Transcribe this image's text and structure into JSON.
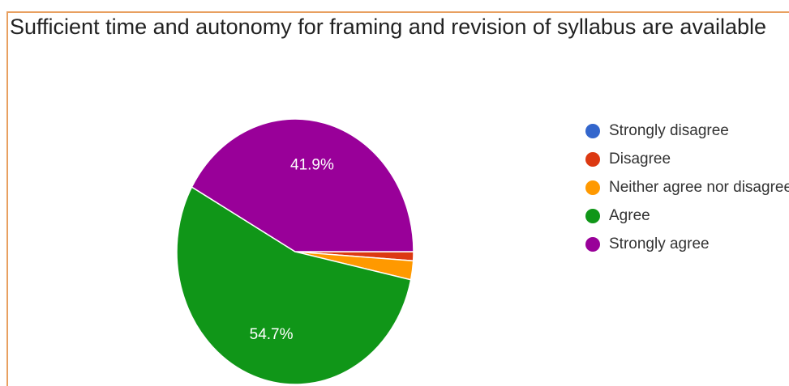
{
  "chart_data": {
    "type": "pie",
    "title": "Sufficient time and autonomy for framing and revision of syllabus are available",
    "categories": [
      "Strongly disagree",
      "Disagree",
      "Neither agree nor disagree",
      "Agree",
      "Strongly agree"
    ],
    "values": [
      0,
      1.1,
      2.3,
      54.7,
      41.9
    ],
    "colors": [
      "#3366cc",
      "#dc3912",
      "#ff9900",
      "#109618",
      "#990099"
    ],
    "data_labels": [
      "",
      "",
      "",
      "54.7%",
      "41.9%"
    ],
    "legend_position": "right",
    "legend_labels": [
      "Strongly disagree",
      "Disagree",
      "Neither agree nor disagree",
      "Agree",
      "Strongly agree"
    ]
  }
}
